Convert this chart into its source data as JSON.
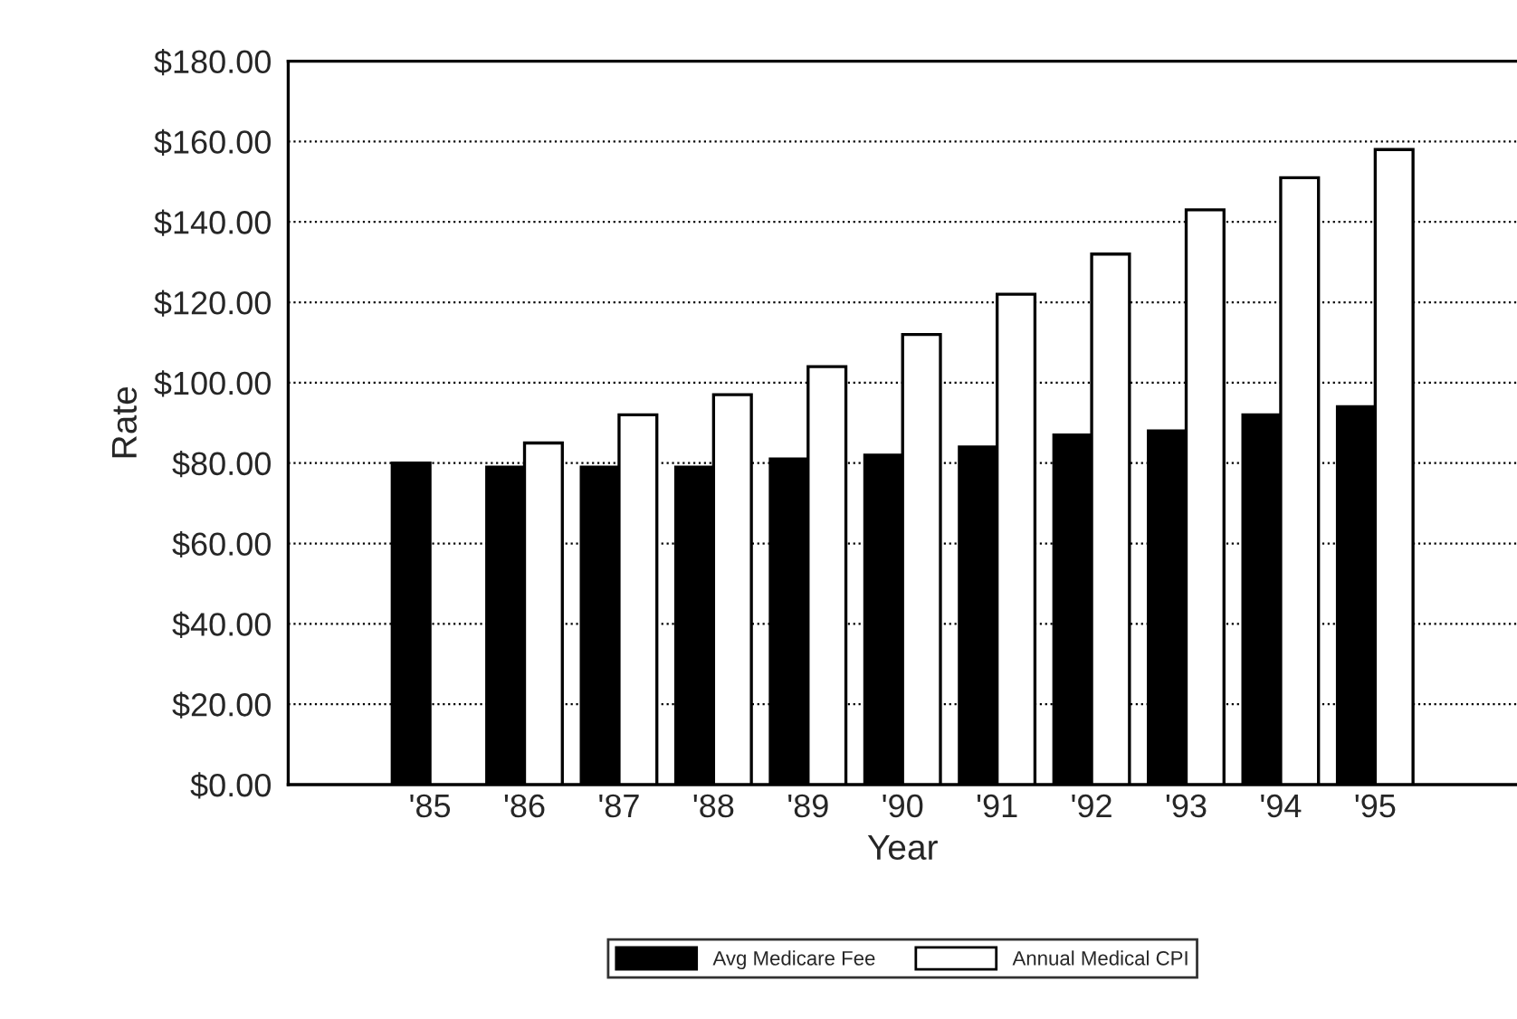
{
  "chart_data": {
    "type": "bar",
    "xlabel": "Year",
    "ylabel": "Rate",
    "categories": [
      null,
      "'85",
      "'86",
      "'87",
      "'88",
      "'89",
      "'90",
      "'91",
      "'92",
      "'93",
      "'94",
      "'95",
      null
    ],
    "series": [
      {
        "name": "Avg Medicare Fee",
        "color": "#000000",
        "values": [
          null,
          80,
          79,
          79,
          79,
          81,
          82,
          84,
          87,
          88,
          92,
          94,
          null
        ]
      },
      {
        "name": "Annual Medical CPI",
        "color": "#ffffff",
        "values": [
          null,
          null,
          85,
          92,
          97,
          104,
          112,
          122,
          132,
          143,
          151,
          158,
          null
        ]
      }
    ],
    "ylim": [
      0,
      180
    ],
    "yticks": [
      {
        "value": 0,
        "label": "$0.00"
      },
      {
        "value": 20,
        "label": "$20.00"
      },
      {
        "value": 40,
        "label": "$40.00"
      },
      {
        "value": 60,
        "label": "$60.00"
      },
      {
        "value": 80,
        "label": "$80.00"
      },
      {
        "value": 100,
        "label": "$100.00"
      },
      {
        "value": 120,
        "label": "$120.00"
      },
      {
        "value": 140,
        "label": "$140.00"
      },
      {
        "value": 160,
        "label": "$160.00"
      },
      {
        "value": 180,
        "label": "$180.00"
      }
    ],
    "grid": "y",
    "legend": "bottom"
  }
}
